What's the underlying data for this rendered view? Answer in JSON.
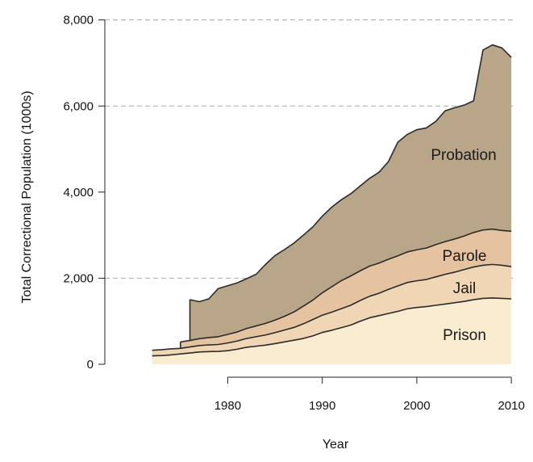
{
  "chart_data": {
    "type": "area",
    "stacked": true,
    "title": "",
    "xlabel": "Year",
    "ylabel": "Total Correctional Population (1000s)",
    "xlim": [
      1967,
      2010.5
    ],
    "ylim": [
      -300,
      8050
    ],
    "x_ticks": [
      1980,
      1990,
      2000,
      2010
    ],
    "y_ticks": [
      0,
      2000,
      4000,
      6000,
      8000
    ],
    "y_tick_labels": [
      "0",
      "2,000",
      "4,000",
      "6,000",
      "8,000"
    ],
    "grid": "horizontal dashed lines at 2,000, 6,000 and 8,000",
    "legend": "none; series labelled inside their bands",
    "colors": {
      "Prison": "#faecd0",
      "Jail": "#f1d6b6",
      "Parole": "#e6c3a0",
      "Probation": "#b9a688",
      "boundary": "#2b2b2b",
      "grid": "#a9a9a9"
    },
    "x": [
      1972,
      1973,
      1974,
      1975,
      1976,
      1977,
      1978,
      1979,
      1980,
      1981,
      1982,
      1983,
      1984,
      1985,
      1986,
      1987,
      1988,
      1989,
      1990,
      1991,
      1992,
      1993,
      1994,
      1995,
      1996,
      1997,
      1998,
      1999,
      2000,
      2001,
      2002,
      2003,
      2004,
      2005,
      2006,
      2007,
      2008,
      2009,
      2010
    ],
    "series": [
      {
        "name": "Prison",
        "values": [
          196,
          204,
          218,
          240,
          262,
          285,
          295,
          300,
          315,
          350,
          395,
          420,
          445,
          480,
          520,
          560,
          600,
          660,
          740,
          790,
          850,
          910,
          1000,
          1080,
          1130,
          1180,
          1230,
          1290,
          1320,
          1340,
          1370,
          1400,
          1430,
          1460,
          1500,
          1530,
          1540,
          1530,
          1520
        ]
      },
      {
        "name": "Jail",
        "values": [
          130,
          135,
          140,
          130,
          140,
          150,
          155,
          160,
          180,
          190,
          205,
          220,
          235,
          255,
          275,
          295,
          340,
          380,
          400,
          420,
          440,
          460,
          480,
          500,
          520,
          560,
          590,
          610,
          620,
          630,
          660,
          690,
          710,
          740,
          760,
          770,
          780,
          770,
          750
        ]
      },
      {
        "name": "Parole",
        "values": [
          0,
          0,
          0,
          150,
          150,
          160,
          170,
          180,
          200,
          210,
          230,
          250,
          270,
          290,
          320,
          360,
          410,
          450,
          520,
          590,
          650,
          680,
          690,
          700,
          700,
          700,
          700,
          710,
          720,
          730,
          750,
          760,
          770,
          780,
          800,
          820,
          820,
          810,
          820
        ]
      },
      {
        "name": "Probation",
        "values": [
          0,
          0,
          0,
          0,
          950,
          860,
          900,
          1120,
          1130,
          1140,
          1160,
          1200,
          1370,
          1500,
          1550,
          1600,
          1650,
          1700,
          1780,
          1850,
          1880,
          1910,
          1970,
          2040,
          2110,
          2270,
          2640,
          2730,
          2790,
          2790,
          2860,
          3040,
          3050,
          3040,
          3060,
          4180,
          4280,
          4240,
          4040
        ]
      }
    ],
    "series_labels": [
      "Probation",
      "Parole",
      "Jail",
      "Prison"
    ]
  }
}
